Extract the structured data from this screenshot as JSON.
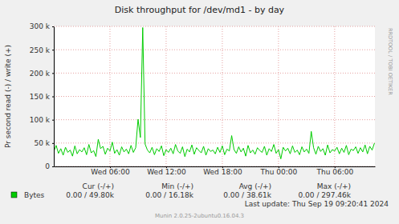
{
  "chart_data": {
    "type": "line",
    "title": "Disk throughput for /dev/md1 - by day",
    "y_label": "Pr second read (-) / write (+)",
    "x": [
      0,
      0.25,
      0.5,
      0.75,
      1,
      1.25,
      1.5,
      1.75,
      2,
      2.25,
      2.5,
      2.75,
      3,
      3.25,
      3.5,
      3.75,
      4,
      4.25,
      4.5,
      4.75,
      5,
      5.25,
      5.5,
      5.75,
      6,
      6.25,
      6.5,
      6.75,
      7,
      7.25,
      7.5,
      7.75,
      8,
      8.25,
      8.5,
      8.75,
      9,
      9.25,
      9.5,
      9.75,
      10,
      10.25,
      10.5,
      10.75,
      11,
      11.25,
      11.5,
      11.75,
      12,
      12.25,
      12.5,
      12.75,
      13,
      13.25,
      13.5,
      13.75,
      14,
      14.25,
      14.5,
      14.75,
      15,
      15.25,
      15.5,
      15.75,
      16,
      16.25,
      16.5,
      16.75,
      17,
      17.25,
      17.5,
      17.75,
      18,
      18.25,
      18.5,
      18.75,
      19,
      19.25,
      19.5,
      19.75,
      20,
      20.25,
      20.5,
      20.75,
      21,
      21.25,
      21.5,
      21.75,
      22,
      22.25,
      22.5,
      22.75,
      23,
      23.25,
      23.5,
      23.75,
      24,
      24.25,
      24.5,
      24.75,
      25,
      25.25,
      25.5,
      25.75,
      26,
      26.25,
      26.5,
      26.75,
      27,
      27.25,
      27.5,
      27.75,
      28,
      28.25,
      28.5,
      28.75,
      29,
      29.25,
      29.5,
      29.75,
      30,
      30.25,
      30.5,
      30.75,
      31,
      31.25,
      31.5,
      31.75,
      32,
      32.25,
      32.5,
      32.75,
      33,
      33.25,
      33.5,
      33.75,
      34,
      34.25
    ],
    "series": [
      {
        "name": "Bytes",
        "color": "#00cc00",
        "values": [
          32000,
          45000,
          28000,
          38000,
          24000,
          41000,
          30000,
          35000,
          22000,
          44000,
          27000,
          36000,
          31000,
          40000,
          25000,
          47000,
          29000,
          34000,
          21000,
          58000,
          38000,
          43000,
          26000,
          39000,
          33000,
          52000,
          28000,
          36000,
          24000,
          42000,
          31000,
          37000,
          27000,
          45000,
          30000,
          40000,
          101000,
          62000,
          297460,
          48000,
          35000,
          29000,
          41000,
          25000,
          38000,
          32000,
          44000,
          23000,
          36000,
          30000,
          39000,
          27000,
          47000,
          33000,
          28000,
          42000,
          21000,
          37000,
          31000,
          46000,
          26000,
          40000,
          34000,
          29000,
          43000,
          24000,
          38000,
          32000,
          35000,
          27000,
          41000,
          30000,
          44000,
          25000,
          37000,
          33000,
          66000,
          36000,
          28000,
          42000,
          31000,
          39000,
          22000,
          45000,
          29000,
          35000,
          26000,
          40000,
          34000,
          30000,
          43000,
          24000,
          38000,
          32000,
          47000,
          28000,
          36000,
          16180,
          41000,
          33000,
          39000,
          27000,
          44000,
          30000,
          35000,
          25000,
          42000,
          31000,
          37000,
          28000,
          75000,
          40000,
          26000,
          43000,
          32000,
          38000,
          24000,
          46000,
          29000,
          36000,
          33000,
          41000,
          27000,
          39000,
          30000,
          45000,
          25000,
          37000,
          34000,
          42000,
          28000,
          40000,
          31000,
          46000,
          27000,
          43000,
          35000,
          49800
        ]
      }
    ],
    "xlim": [
      0,
      34.3
    ],
    "xticks": [
      {
        "value": 6,
        "label": "Wed 06:00"
      },
      {
        "value": 12,
        "label": "Wed 12:00"
      },
      {
        "value": 18,
        "label": "Wed 18:00"
      },
      {
        "value": 24,
        "label": "Thu 00:00"
      },
      {
        "value": 30,
        "label": "Thu 06:00"
      }
    ],
    "ylim": [
      0,
      300000
    ],
    "yticks": [
      0,
      {
        "value": 50000,
        "label": "50 k"
      },
      {
        "value": 100000,
        "label": "100 k"
      },
      {
        "value": 150000,
        "label": "150 k"
      },
      {
        "value": 200000,
        "label": "200 k"
      },
      {
        "value": 250000,
        "label": "250 k"
      },
      {
        "value": 300000,
        "label": "300 k"
      }
    ],
    "grid": true,
    "legend": "bottom",
    "annotations": {
      "headers": [
        "Cur (-/+)",
        "Min (-/+)",
        "Avg (-/+)",
        "Max (-/+)"
      ],
      "stats": [
        "0.00 / 49.80k",
        "0.00 / 16.18k",
        "0.00 / 38.61k",
        "0.00 / 297.46k"
      ],
      "last_update": "Last update: Thu Sep 19 09:20:41 2024",
      "footer": "Munin 2.0.25-2ubuntu0.16.04.3",
      "watermark": "RRDTOOL / TOBI OETIKER"
    }
  }
}
